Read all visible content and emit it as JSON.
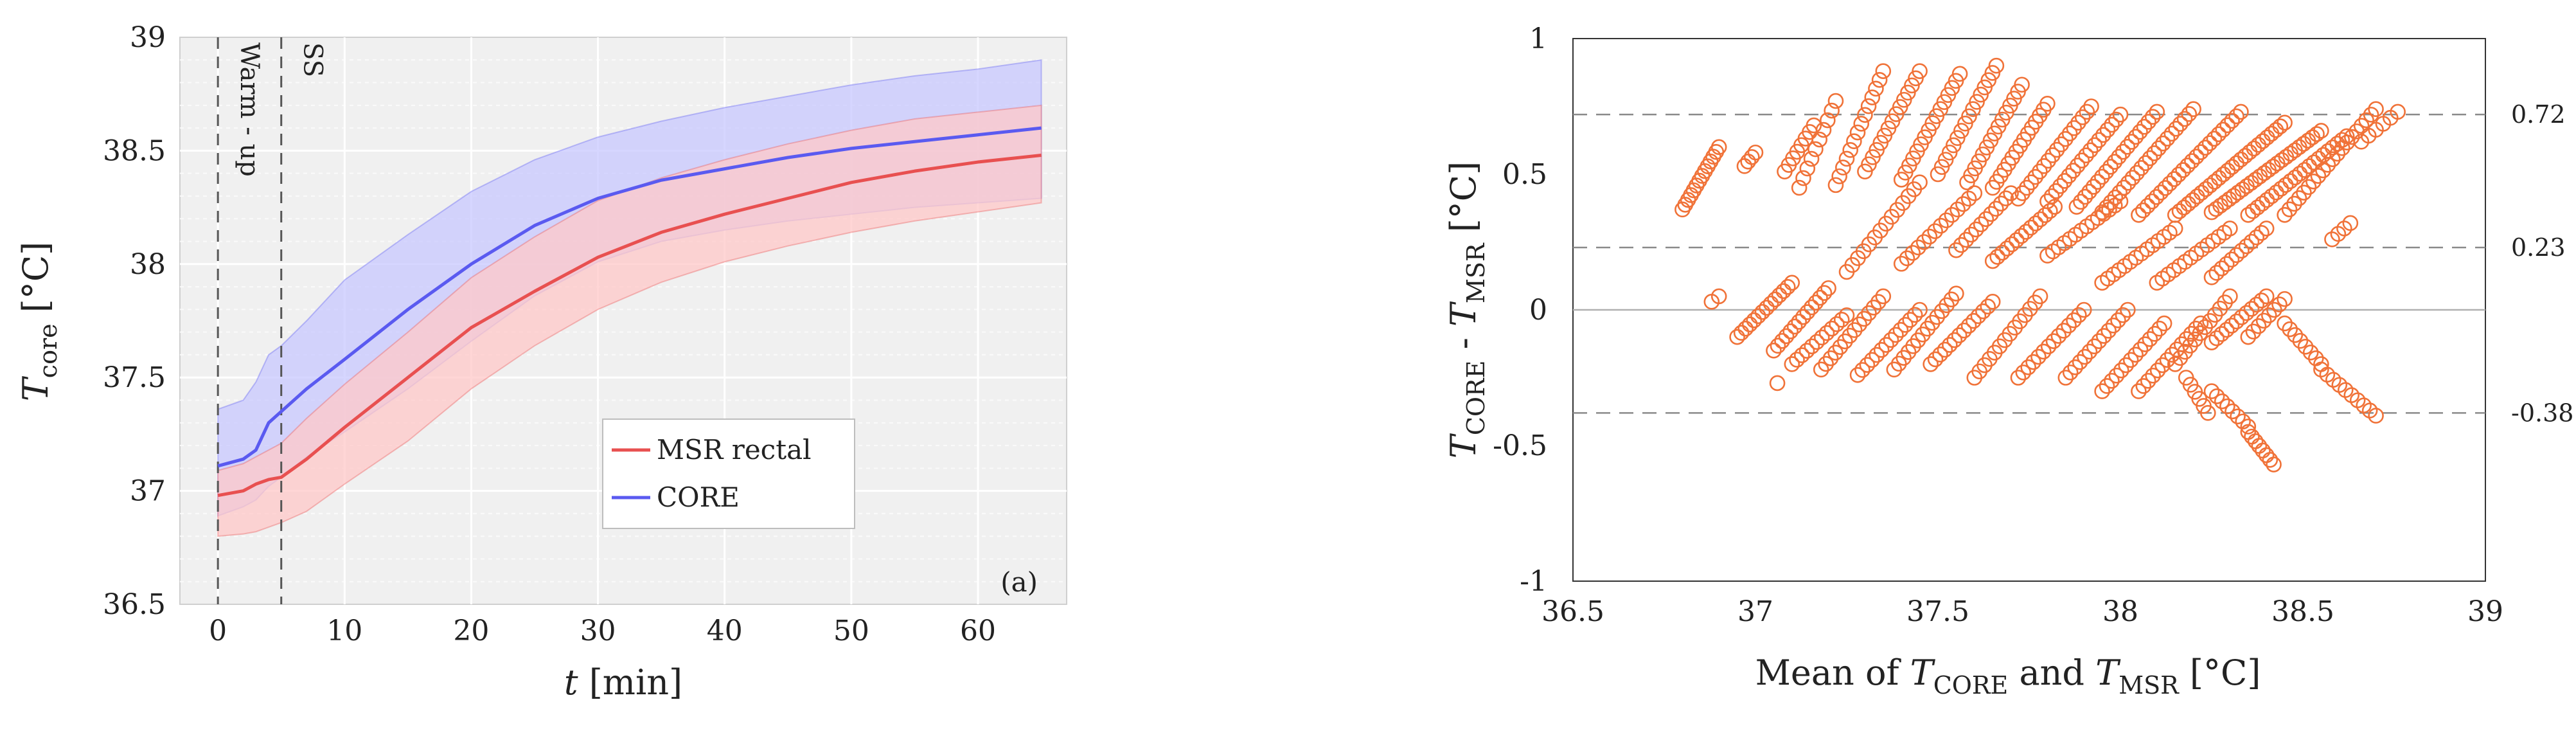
{
  "chart_data": [
    {
      "type": "line",
      "panel_label": "(a)",
      "xlabel": {
        "var": "t",
        "unit": " [min]"
      },
      "ylabel": {
        "var": "T",
        "sub": "core",
        "unit": " [°C]"
      },
      "xlim": [
        -3,
        67
      ],
      "ylim": [
        36.5,
        39
      ],
      "xticks": [
        0,
        10,
        20,
        30,
        40,
        50,
        60
      ],
      "xtick_labels": [
        "0",
        "10",
        "20",
        "30",
        "40",
        "50",
        "60"
      ],
      "yticks": [
        36.5,
        37,
        37.5,
        38,
        38.5,
        39
      ],
      "ytick_labels": [
        "36.5",
        "37",
        "37.5",
        "38",
        "38.5",
        "39"
      ],
      "grid": true,
      "legend": "center-right",
      "markers": [
        {
          "x": 0,
          "label": "Warm - up"
        },
        {
          "x": 5,
          "label": "SS"
        }
      ],
      "x": [
        0,
        2,
        3,
        4,
        5,
        7,
        10,
        15,
        20,
        25,
        30,
        35,
        40,
        45,
        50,
        55,
        60,
        65
      ],
      "series": [
        {
          "name": "CORE",
          "color": "#5a5af0",
          "band_color": "#c8c8ff",
          "mean": [
            37.11,
            37.14,
            37.18,
            37.3,
            37.35,
            37.45,
            37.58,
            37.8,
            38.0,
            38.17,
            38.29,
            38.37,
            38.42,
            38.47,
            38.51,
            38.54,
            38.57,
            38.6
          ],
          "upper": [
            37.36,
            37.4,
            37.48,
            37.6,
            37.64,
            37.75,
            37.93,
            38.13,
            38.32,
            38.46,
            38.56,
            38.63,
            38.69,
            38.74,
            38.79,
            38.83,
            38.86,
            38.9
          ],
          "lower": [
            36.89,
            36.93,
            36.96,
            37.02,
            37.06,
            37.15,
            37.26,
            37.45,
            37.66,
            37.86,
            38.01,
            38.1,
            38.15,
            38.19,
            38.22,
            38.25,
            38.27,
            38.29
          ]
        },
        {
          "name": "MSR rectal",
          "color": "#e85050",
          "band_color": "#ffc8c8",
          "mean": [
            36.98,
            37.0,
            37.03,
            37.05,
            37.06,
            37.14,
            37.28,
            37.5,
            37.72,
            37.88,
            38.03,
            38.14,
            38.22,
            38.29,
            38.36,
            38.41,
            38.45,
            38.48
          ],
          "upper": [
            37.09,
            37.12,
            37.15,
            37.18,
            37.21,
            37.32,
            37.47,
            37.7,
            37.94,
            38.12,
            38.28,
            38.38,
            38.46,
            38.53,
            38.59,
            38.64,
            38.67,
            38.7
          ],
          "lower": [
            36.8,
            36.81,
            36.82,
            36.84,
            36.86,
            36.91,
            37.03,
            37.22,
            37.45,
            37.64,
            37.8,
            37.92,
            38.01,
            38.08,
            38.14,
            38.19,
            38.23,
            38.27
          ]
        }
      ]
    },
    {
      "type": "scatter",
      "xlabel": {
        "prefix": "Mean of ",
        "var1": "T",
        "sub1": "CORE",
        "mid": " and ",
        "var2": "T",
        "sub2": "MSR",
        "unit": " [°C]"
      },
      "ylabel": {
        "var1": "T",
        "sub1": "CORE",
        "mid": " - ",
        "var2": "T",
        "sub2": "MSR",
        "unit": " [°C]"
      },
      "xlim": [
        36.5,
        39
      ],
      "ylim": [
        -1,
        1
      ],
      "xticks": [
        36.5,
        37,
        37.5,
        38,
        38.5,
        39
      ],
      "xtick_labels": [
        "36.5",
        "37",
        "37.5",
        "38",
        "38.5",
        "39"
      ],
      "yticks": [
        -1,
        -0.5,
        0,
        0.5,
        1
      ],
      "ytick_labels": [
        "-1",
        "-0.5",
        "0",
        "0.5",
        "1"
      ],
      "reference_lines": [
        {
          "y": 0.72,
          "label": "0.72",
          "style": "dashed"
        },
        {
          "y": 0.23,
          "label": "0.23",
          "style": "dashed"
        },
        {
          "y": 0,
          "label": "",
          "style": "solid"
        },
        {
          "y": -0.38,
          "label": "-0.38",
          "style": "dashed"
        }
      ],
      "marker_color": "#f07238",
      "point_strands": [
        {
          "x0": 36.8,
          "y0": 0.37,
          "x1": 36.9,
          "y1": 0.6,
          "n": 14
        },
        {
          "x0": 36.97,
          "y0": 0.53,
          "x1": 37.0,
          "y1": 0.58,
          "n": 4
        },
        {
          "x0": 37.08,
          "y0": 0.51,
          "x1": 37.16,
          "y1": 0.68,
          "n": 8
        },
        {
          "x0": 37.12,
          "y0": 0.45,
          "x1": 37.22,
          "y1": 0.77,
          "n": 10
        },
        {
          "x0": 37.22,
          "y0": 0.46,
          "x1": 37.35,
          "y1": 0.88,
          "n": 14
        },
        {
          "x0": 37.3,
          "y0": 0.51,
          "x1": 37.45,
          "y1": 0.88,
          "n": 15
        },
        {
          "x0": 37.4,
          "y0": 0.48,
          "x1": 37.56,
          "y1": 0.87,
          "n": 16
        },
        {
          "x0": 37.5,
          "y0": 0.5,
          "x1": 37.66,
          "y1": 0.9,
          "n": 16
        },
        {
          "x0": 37.58,
          "y0": 0.47,
          "x1": 37.73,
          "y1": 0.83,
          "n": 15
        },
        {
          "x0": 37.65,
          "y0": 0.45,
          "x1": 37.8,
          "y1": 0.76,
          "n": 15
        },
        {
          "x0": 37.72,
          "y0": 0.41,
          "x1": 37.92,
          "y1": 0.75,
          "n": 18
        },
        {
          "x0": 37.8,
          "y0": 0.4,
          "x1": 38.0,
          "y1": 0.72,
          "n": 18
        },
        {
          "x0": 37.88,
          "y0": 0.38,
          "x1": 38.1,
          "y1": 0.73,
          "n": 20
        },
        {
          "x0": 37.95,
          "y0": 0.36,
          "x1": 38.2,
          "y1": 0.74,
          "n": 22
        },
        {
          "x0": 38.05,
          "y0": 0.35,
          "x1": 38.33,
          "y1": 0.73,
          "n": 24
        },
        {
          "x0": 38.15,
          "y0": 0.35,
          "x1": 38.45,
          "y1": 0.69,
          "n": 26
        },
        {
          "x0": 38.25,
          "y0": 0.36,
          "x1": 38.55,
          "y1": 0.66,
          "n": 26
        },
        {
          "x0": 38.35,
          "y0": 0.35,
          "x1": 38.62,
          "y1": 0.64,
          "n": 22
        },
        {
          "x0": 38.45,
          "y0": 0.35,
          "x1": 38.7,
          "y1": 0.74,
          "n": 20
        },
        {
          "x0": 38.66,
          "y0": 0.62,
          "x1": 38.76,
          "y1": 0.73,
          "n": 6
        },
        {
          "x0": 37.25,
          "y0": 0.14,
          "x1": 37.45,
          "y1": 0.47,
          "n": 14
        },
        {
          "x0": 37.4,
          "y0": 0.17,
          "x1": 37.6,
          "y1": 0.43,
          "n": 14
        },
        {
          "x0": 37.55,
          "y0": 0.22,
          "x1": 37.7,
          "y1": 0.43,
          "n": 12
        },
        {
          "x0": 37.65,
          "y0": 0.18,
          "x1": 37.82,
          "y1": 0.38,
          "n": 14
        },
        {
          "x0": 37.8,
          "y0": 0.2,
          "x1": 38.0,
          "y1": 0.4,
          "n": 14
        },
        {
          "x0": 37.95,
          "y0": 0.1,
          "x1": 38.15,
          "y1": 0.3,
          "n": 14
        },
        {
          "x0": 38.1,
          "y0": 0.1,
          "x1": 38.3,
          "y1": 0.3,
          "n": 14
        },
        {
          "x0": 38.25,
          "y0": 0.12,
          "x1": 38.4,
          "y1": 0.3,
          "n": 12
        },
        {
          "x0": 38.58,
          "y0": 0.26,
          "x1": 38.63,
          "y1": 0.32,
          "n": 4
        },
        {
          "x0": 36.95,
          "y0": -0.1,
          "x1": 37.1,
          "y1": 0.1,
          "n": 14
        },
        {
          "x0": 37.05,
          "y0": -0.15,
          "x1": 37.2,
          "y1": 0.08,
          "n": 14
        },
        {
          "x0": 37.1,
          "y0": -0.2,
          "x1": 37.25,
          "y1": -0.02,
          "n": 12
        },
        {
          "x0": 37.18,
          "y0": -0.22,
          "x1": 37.35,
          "y1": 0.05,
          "n": 14
        },
        {
          "x0": 37.28,
          "y0": -0.24,
          "x1": 37.45,
          "y1": 0.0,
          "n": 14
        },
        {
          "x0": 37.38,
          "y0": -0.22,
          "x1": 37.55,
          "y1": 0.06,
          "n": 14
        },
        {
          "x0": 37.48,
          "y0": -0.2,
          "x1": 37.65,
          "y1": 0.03,
          "n": 14
        },
        {
          "x0": 37.6,
          "y0": -0.25,
          "x1": 37.78,
          "y1": 0.05,
          "n": 14
        },
        {
          "x0": 37.72,
          "y0": -0.25,
          "x1": 37.9,
          "y1": 0.0,
          "n": 14
        },
        {
          "x0": 37.85,
          "y0": -0.25,
          "x1": 38.02,
          "y1": 0.0,
          "n": 14
        },
        {
          "x0": 37.95,
          "y0": -0.3,
          "x1": 38.12,
          "y1": -0.05,
          "n": 14
        },
        {
          "x0": 38.05,
          "y0": -0.3,
          "x1": 38.22,
          "y1": -0.05,
          "n": 14
        },
        {
          "x0": 38.15,
          "y0": -0.2,
          "x1": 38.3,
          "y1": 0.05,
          "n": 12
        },
        {
          "x0": 38.25,
          "y0": -0.12,
          "x1": 38.4,
          "y1": 0.05,
          "n": 12
        },
        {
          "x0": 38.35,
          "y0": -0.1,
          "x1": 38.45,
          "y1": 0.04,
          "n": 8
        },
        {
          "x0": 36.88,
          "y0": 0.03,
          "x1": 36.9,
          "y1": 0.05,
          "n": 2
        },
        {
          "x0": 37.06,
          "y0": -0.27,
          "x1": 37.06,
          "y1": -0.27,
          "n": 1
        },
        {
          "x0": 38.25,
          "y0": -0.3,
          "x1": 38.35,
          "y1": -0.43,
          "n": 8
        },
        {
          "x0": 38.35,
          "y0": -0.45,
          "x1": 38.42,
          "y1": -0.57,
          "n": 8
        },
        {
          "x0": 38.45,
          "y0": -0.05,
          "x1": 38.55,
          "y1": -0.2,
          "n": 8
        },
        {
          "x0": 38.55,
          "y0": -0.22,
          "x1": 38.7,
          "y1": -0.39,
          "n": 10
        },
        {
          "x0": 38.18,
          "y0": -0.25,
          "x1": 38.24,
          "y1": -0.38,
          "n": 6
        }
      ]
    }
  ]
}
